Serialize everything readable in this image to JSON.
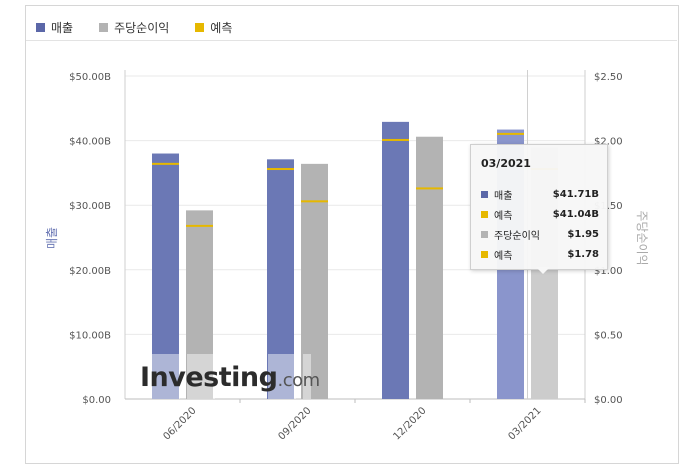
{
  "legend": {
    "revenue_label": "매출",
    "eps_label": "주당순이익",
    "forecast_label": "예측"
  },
  "colors": {
    "revenue": "#6b78b5",
    "revenue_highlight": "#8a95cc",
    "eps": "#b3b3b3",
    "eps_highlight": "#cccccc",
    "forecast": "#e6b800"
  },
  "chart_data": {
    "type": "bar",
    "categories": [
      "06/2020",
      "09/2020",
      "12/2020",
      "03/2021"
    ],
    "series": [
      {
        "name": "매출",
        "axis": "left",
        "values": [
          38.0,
          37.1,
          42.9,
          41.71
        ]
      },
      {
        "name": "주당순이익",
        "axis": "right",
        "values": [
          1.46,
          1.82,
          2.03,
          1.95
        ]
      }
    ],
    "forecasts": {
      "revenue": [
        36.4,
        35.6,
        40.1,
        41.04
      ],
      "eps": [
        1.34,
        1.53,
        1.63,
        1.78
      ]
    },
    "ylabel": "매출",
    "y2label": "주당순이익",
    "ylim": [
      0,
      50
    ],
    "y2lim": [
      0,
      2.5
    ],
    "y_ticks": [
      "$0.00",
      "$10.00B",
      "$20.00B",
      "$30.00B",
      "$40.00B",
      "$50.00B"
    ],
    "y2_ticks": [
      "$0.00",
      "$0.50",
      "$1.00",
      "$1.50",
      "$2.00",
      "$2.50"
    ],
    "grid": true,
    "legend_position": "top-left",
    "highlight_index": 3
  },
  "tooltip": {
    "title": "03/2021",
    "rows": [
      {
        "label": "매출",
        "value": "$41.71B",
        "color": "#5b67a8"
      },
      {
        "label": "예측",
        "value": "$41.04B",
        "color": "#e6b800"
      },
      {
        "label": "주당순이익",
        "value": "$1.95",
        "color": "#b3b3b3"
      },
      {
        "label": "예측",
        "value": "$1.78",
        "color": "#e6b800"
      }
    ]
  },
  "watermark": {
    "brand": "Investing",
    "suffix": ".com"
  }
}
